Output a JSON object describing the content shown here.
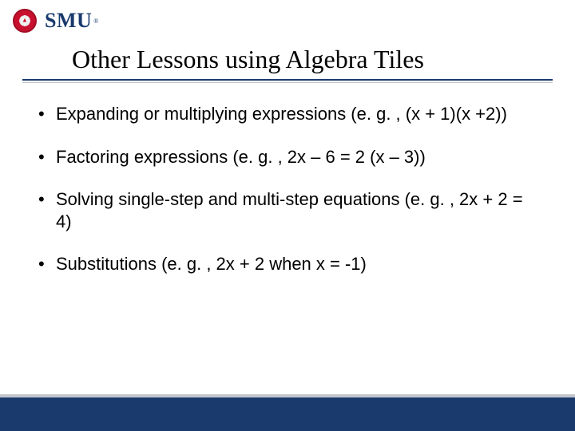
{
  "logo": {
    "text": "SMU",
    "reg": "®",
    "seal_bg": "#c8102e",
    "text_color": "#1a3a6e"
  },
  "title": "Other Lessons using Algebra Tiles",
  "title_fontsize": 32,
  "title_fontfamily": "Times New Roman",
  "underline_color": "#1a3a6e",
  "bullets": [
    "Expanding or multiplying expressions (e. g. , (x + 1)(x +2))",
    "Factoring expressions (e. g. , 2x – 6 = 2 (x – 3))",
    "Solving single-step and multi-step equations (e. g. , 2x + 2 = 4)",
    "Substitutions (e. g. , 2x + 2 when x = -1)"
  ],
  "bullet_fontsize": 22,
  "bullet_fontfamily": "Arial",
  "footer_bar_color": "#1a3a6e",
  "footer_line_color": "#c2c6cc",
  "background_color": "#ffffff"
}
